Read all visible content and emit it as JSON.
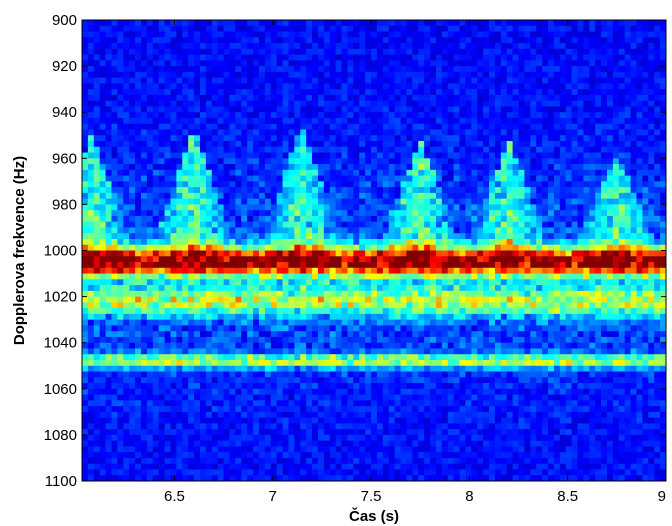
{
  "chart_data": {
    "type": "heatmap",
    "title": "",
    "xlabel": "Čas (s)",
    "ylabel": "Dopplerova frekvence (Hz)",
    "xlim": [
      6.03,
      9.0
    ],
    "ylim": [
      900,
      1100
    ],
    "y_inverted": true,
    "xticks": [
      6.5,
      7,
      7.5,
      8,
      8.5,
      9
    ],
    "xtick_labels": [
      "6.5",
      "7",
      "7.5",
      "8",
      "8.5",
      "9"
    ],
    "yticks": [
      900,
      920,
      940,
      960,
      980,
      1000,
      1020,
      1040,
      1060,
      1080,
      1100
    ],
    "ytick_labels": [
      "900",
      "920",
      "940",
      "960",
      "980",
      "1000",
      "1020",
      "1040",
      "1060",
      "1080",
      "1100"
    ],
    "colormap": "jet",
    "colorscale_stops": [
      "#00008f",
      "#0000ff",
      "#00ffff",
      "#ffff00",
      "#ff0000",
      "#800000"
    ],
    "grid": false,
    "features": {
      "carrier_band": {
        "frequency_hz": 1005,
        "width_hz": 6,
        "intensity": 0.9
      },
      "secondary_band": {
        "frequency_hz": 1048,
        "width_hz": 3,
        "intensity": 0.45
      },
      "lower_band": {
        "frequency_hz": 1022,
        "width_hz": 6,
        "intensity": 0.4
      },
      "micro_doppler_peaks": [
        {
          "time_s": 6.08,
          "frequency_hz": 950
        },
        {
          "time_s": 6.6,
          "frequency_hz": 946
        },
        {
          "time_s": 7.15,
          "frequency_hz": 945
        },
        {
          "time_s": 7.75,
          "frequency_hz": 952
        },
        {
          "time_s": 8.2,
          "frequency_hz": 952
        },
        {
          "time_s": 8.75,
          "frequency_hz": 958
        }
      ]
    }
  }
}
